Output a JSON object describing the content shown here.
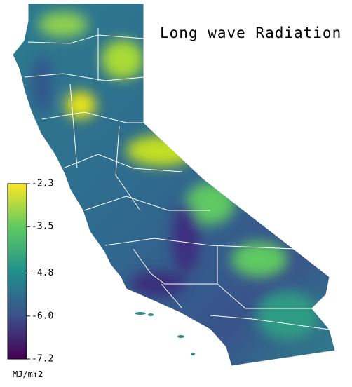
{
  "title": "Long wave Radiation",
  "colorbar": {
    "label": "MJ/m↑2",
    "lim": [
      -7.2,
      -2.3
    ],
    "ticks": [
      -2.3,
      -3.5,
      -4.8,
      {
        "value": -6,
        "label": "-6.0"
      },
      -7.2
    ],
    "colors": [
      "#440154",
      "#3b528b",
      "#21918c",
      "#5ec962",
      "#fde725"
    ]
  }
}
